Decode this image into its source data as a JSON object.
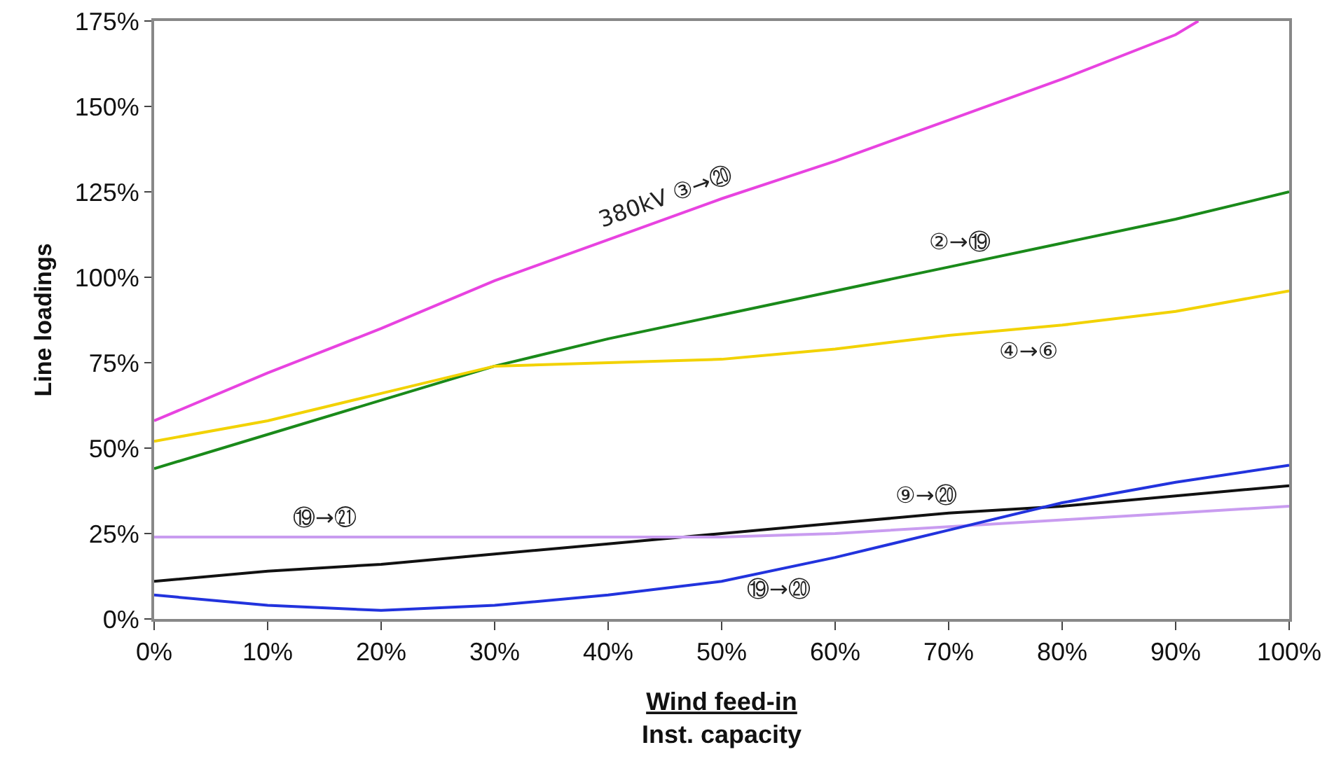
{
  "chart_data": {
    "type": "line",
    "xlabel": "Wind feed-in\nInst. capacity",
    "ylabel": "Line loadings",
    "x": [
      0,
      10,
      20,
      30,
      40,
      50,
      60,
      70,
      80,
      90,
      100
    ],
    "series": [
      {
        "name": "380kV ③→⑳",
        "color": "#e843e0",
        "x": [
          0,
          10,
          20,
          30,
          40,
          50,
          60,
          70,
          80,
          90,
          92
        ],
        "values": [
          58,
          72,
          85,
          99,
          111,
          123,
          134,
          146,
          158,
          171,
          175
        ]
      },
      {
        "name": "②→⑲",
        "color": "#1a8a1a",
        "values": [
          44,
          54,
          64,
          74,
          82,
          89,
          96,
          103,
          110,
          117,
          125
        ]
      },
      {
        "name": "④→⑥",
        "color": "#f2d200",
        "values": [
          52,
          58,
          66,
          74,
          75,
          76,
          79,
          83,
          86,
          90,
          96
        ]
      },
      {
        "name": "⑨→⑳",
        "color": "#111111",
        "values": [
          11,
          14,
          16,
          19,
          22,
          25,
          28,
          31,
          33,
          36,
          39
        ]
      },
      {
        "name": "⑲→㉑",
        "color": "#c99cf0",
        "values": [
          24,
          24,
          24,
          24,
          24,
          24,
          25,
          27,
          29,
          31,
          33
        ]
      },
      {
        "name": "⑲→⑳",
        "color": "#2233dd",
        "values": [
          7,
          4,
          2.5,
          4,
          7,
          11,
          18,
          26,
          34,
          40,
          45
        ]
      }
    ],
    "xlim": [
      0,
      100
    ],
    "ylim": [
      0,
      175
    ],
    "xticks": [
      {
        "value": 0,
        "label": "0%"
      },
      {
        "value": 10,
        "label": "10%"
      },
      {
        "value": 20,
        "label": "20%"
      },
      {
        "value": 30,
        "label": "30%"
      },
      {
        "value": 40,
        "label": "40%"
      },
      {
        "value": 50,
        "label": "50%"
      },
      {
        "value": 60,
        "label": "60%"
      },
      {
        "value": 70,
        "label": "70%"
      },
      {
        "value": 80,
        "label": "80%"
      },
      {
        "value": 90,
        "label": "90%"
      },
      {
        "value": 100,
        "label": "100%"
      }
    ],
    "yticks": [
      {
        "value": 0,
        "label": "0%"
      },
      {
        "value": 25,
        "label": "25%"
      },
      {
        "value": 50,
        "label": "50%"
      },
      {
        "value": 75,
        "label": "75%"
      },
      {
        "value": 100,
        "label": "100%"
      },
      {
        "value": 125,
        "label": "125%"
      },
      {
        "value": 150,
        "label": "150%"
      },
      {
        "value": 175,
        "label": "175%"
      }
    ],
    "grid": false,
    "legend": false,
    "marker": "none",
    "line_style": "solid"
  }
}
